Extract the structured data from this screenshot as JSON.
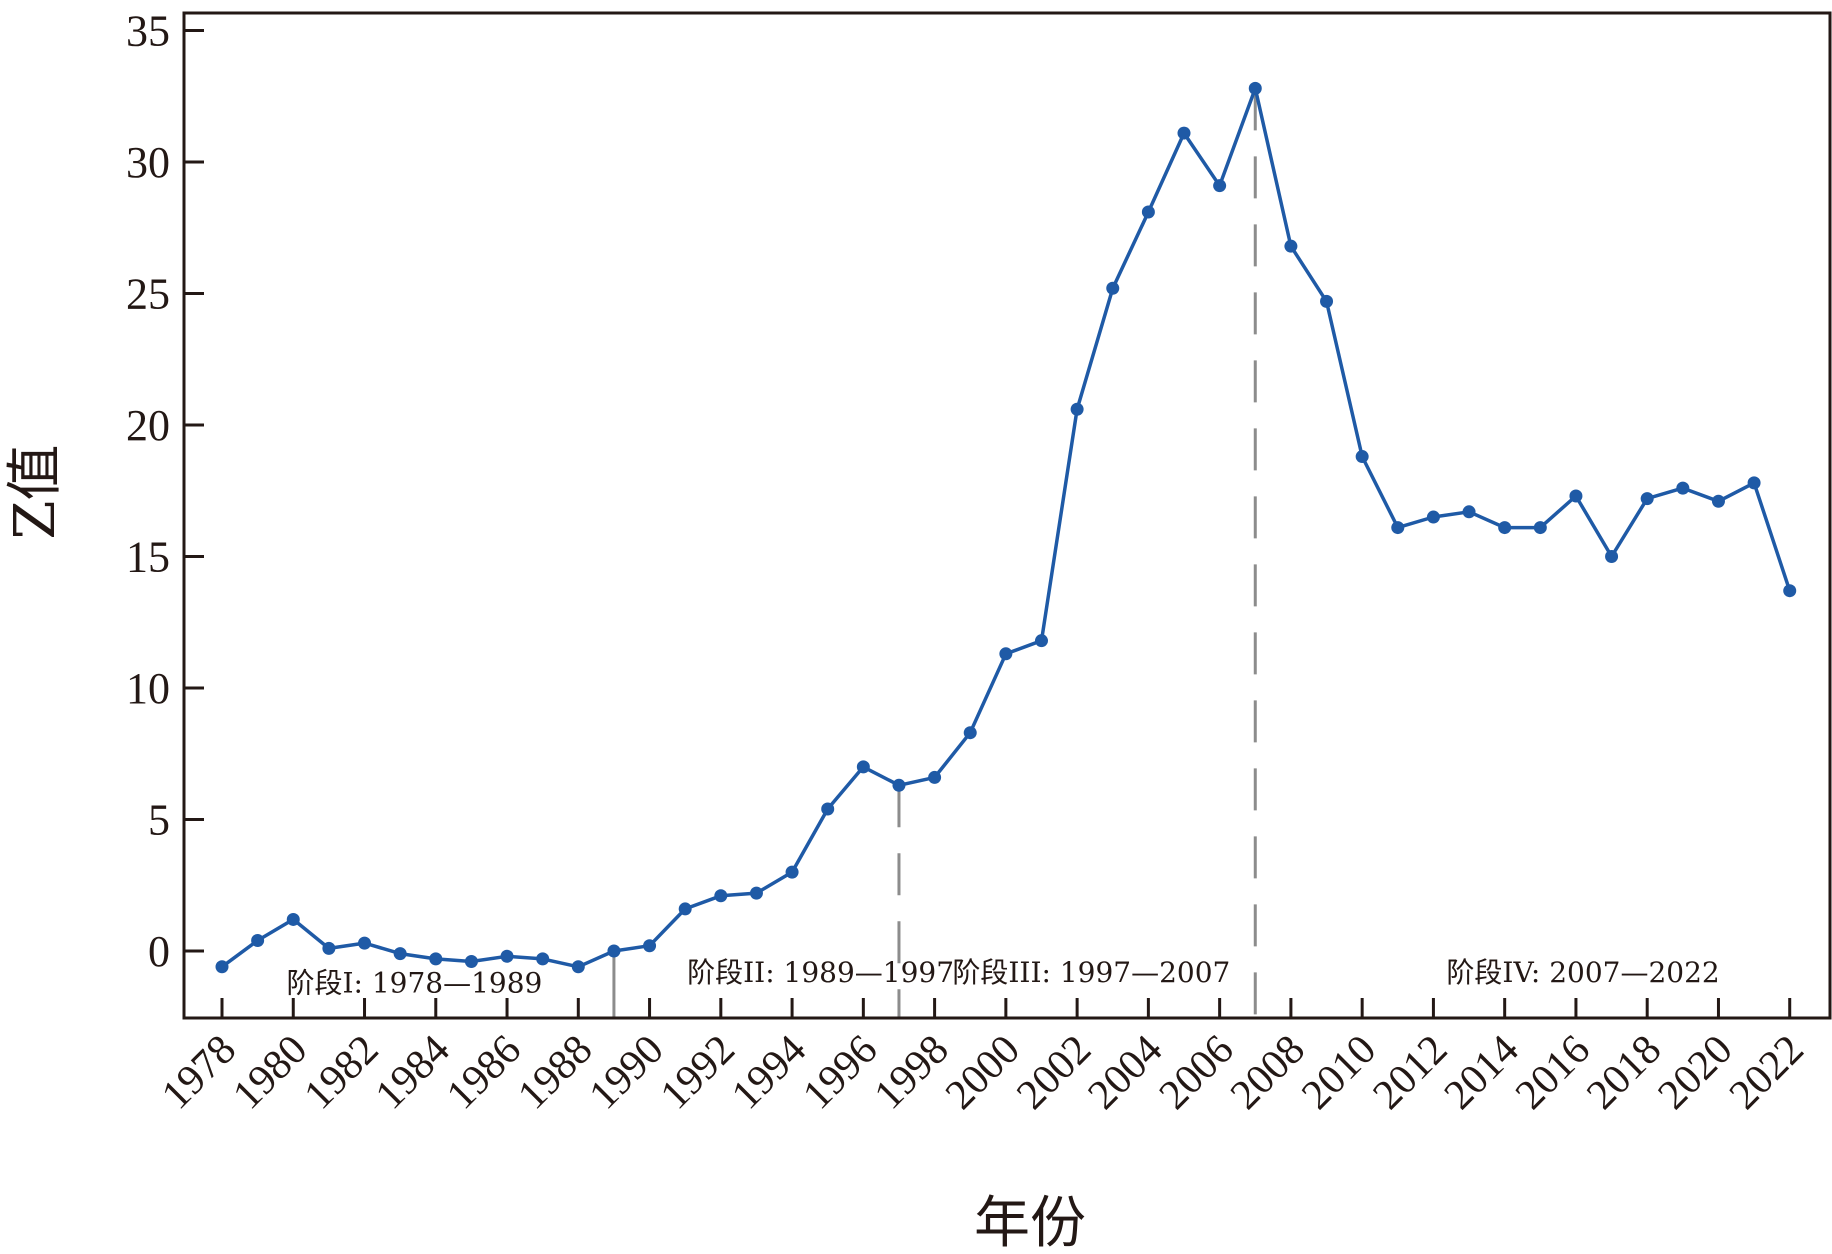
{
  "chart_data": {
    "type": "line",
    "title": "",
    "xlabel": "年份",
    "ylabel": "Z值",
    "xlim": [
      1978,
      2022
    ],
    "ylim": [
      -2.5,
      35
    ],
    "x_ticks": [
      1978,
      1980,
      1982,
      1984,
      1986,
      1988,
      1990,
      1992,
      1994,
      1996,
      1998,
      2000,
      2002,
      2004,
      2006,
      2008,
      2010,
      2012,
      2014,
      2016,
      2018,
      2020,
      2022
    ],
    "y_ticks": [
      0,
      5,
      10,
      15,
      20,
      25,
      30,
      35
    ],
    "grid": false,
    "legend": "none",
    "colors": {
      "line": "#1f5aa6",
      "divider": "#8c8c8c",
      "axis": "#231815"
    },
    "series": [
      {
        "x": [
          1978,
          1979,
          1980,
          1981,
          1982,
          1983,
          1984,
          1985,
          1986,
          1987,
          1988,
          1989,
          1990,
          1991,
          1992,
          1993,
          1994,
          1995,
          1996,
          1997,
          1998,
          1999,
          2000,
          2001,
          2002,
          2003,
          2004,
          2005,
          2006,
          2007,
          2008,
          2009,
          2010,
          2011,
          2012,
          2013,
          2014,
          2015,
          2016,
          2017,
          2018,
          2019,
          2020,
          2021,
          2022
        ],
        "values": [
          -0.6,
          0.4,
          1.2,
          0.1,
          0.3,
          -0.1,
          -0.3,
          -0.4,
          -0.2,
          -0.3,
          -0.6,
          0.0,
          0.2,
          1.6,
          2.1,
          2.2,
          3.0,
          5.4,
          7.0,
          6.3,
          6.6,
          8.3,
          11.3,
          11.8,
          20.6,
          25.2,
          28.1,
          31.1,
          29.1,
          32.8,
          26.8,
          24.7,
          18.8,
          16.1,
          16.5,
          16.7,
          16.1,
          16.1,
          17.3,
          15.0,
          17.2,
          17.6,
          17.1,
          17.8,
          13.7
        ]
      }
    ],
    "dividers": [
      {
        "x": 1989,
        "style": "solid"
      },
      {
        "x": 1997,
        "style": "dashed"
      },
      {
        "x": 2007,
        "style": "dashed"
      }
    ],
    "annotations": [
      {
        "text": "阶段I: 1978—1989",
        "x": 1983.4,
        "y": -1.2
      },
      {
        "text": "阶段II: 1989—1997",
        "x": 1994.8,
        "y": -0.8
      },
      {
        "text": "阶段III: 1997—2007",
        "x": 2002.4,
        "y": -0.8
      },
      {
        "text": "阶段IV: 2007—2022",
        "x": 2016.2,
        "y": -0.8
      }
    ]
  }
}
